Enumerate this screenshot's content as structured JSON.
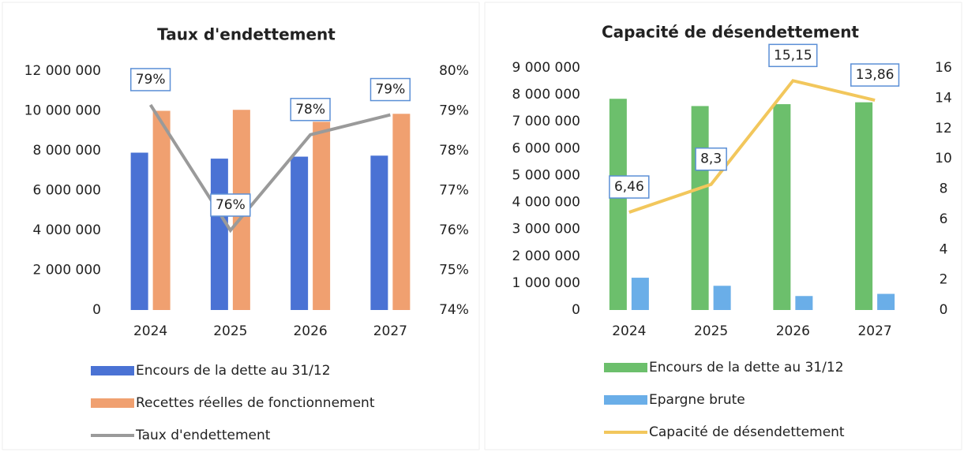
{
  "chart_data": [
    {
      "type": "bar",
      "title": "Taux d'endettement",
      "categories": [
        "2024",
        "2025",
        "2026",
        "2027"
      ],
      "series": [
        {
          "name": "Encours de la dette au 31/12",
          "color": "#4a72d4",
          "values": [
            7900000,
            7600000,
            7700000,
            7750000
          ]
        },
        {
          "name": "Recettes réelles de fonctionnement",
          "color": "#f0a070",
          "values": [
            10000000,
            10050000,
            9450000,
            9850000
          ]
        },
        {
          "name": "Taux d'endettement",
          "type": "line",
          "axis": "y2",
          "color": "#9a9a9a",
          "values": [
            79.15,
            76.0,
            78.4,
            78.9
          ],
          "value_labels": [
            "79%",
            "76%",
            "78%",
            "79%"
          ]
        }
      ],
      "ylim": [
        0,
        12000000
      ],
      "yticks": [
        {
          "value": 0,
          "label": "0"
        },
        {
          "value": 2000000,
          "label": "2 000 000"
        },
        {
          "value": 4000000,
          "label": "4 000 000"
        },
        {
          "value": 6000000,
          "label": "6 000 000"
        },
        {
          "value": 8000000,
          "label": "8 000 000"
        },
        {
          "value": 10000000,
          "label": "10 000 000"
        },
        {
          "value": 12000000,
          "label": "12 000 000"
        }
      ],
      "y2lim": [
        74,
        80
      ],
      "y2ticks": [
        {
          "value": 74,
          "label": "74%"
        },
        {
          "value": 75,
          "label": "75%"
        },
        {
          "value": 76,
          "label": "76%"
        },
        {
          "value": 77,
          "label": "77%"
        },
        {
          "value": 78,
          "label": "78%"
        },
        {
          "value": 79,
          "label": "79%"
        },
        {
          "value": 80,
          "label": "80%"
        }
      ],
      "legend": "bottom"
    },
    {
      "type": "bar",
      "title": "Capacité de désendettement",
      "categories": [
        "2024",
        "2025",
        "2026",
        "2027"
      ],
      "series": [
        {
          "name": "Encours de la dette au 31/12",
          "color": "#6cbf6c",
          "values": [
            7850000,
            7580000,
            7650000,
            7720000
          ]
        },
        {
          "name": "Epargne brute",
          "color": "#6aaee8",
          "values": [
            1200000,
            900000,
            520000,
            600000
          ]
        },
        {
          "name": "Capacité de désendettement",
          "type": "line",
          "axis": "y2",
          "color": "#f2c75c",
          "values": [
            6.46,
            8.3,
            15.15,
            13.86
          ],
          "value_labels": [
            "6,46",
            "8,3",
            "15,15",
            "13,86"
          ]
        }
      ],
      "ylim": [
        0,
        9000000
      ],
      "yticks": [
        {
          "value": 0,
          "label": "0"
        },
        {
          "value": 1000000,
          "label": "1 000 000"
        },
        {
          "value": 2000000,
          "label": "2 000 000"
        },
        {
          "value": 3000000,
          "label": "3 000 000"
        },
        {
          "value": 4000000,
          "label": "4 000 000"
        },
        {
          "value": 5000000,
          "label": "5 000 000"
        },
        {
          "value": 6000000,
          "label": "6 000 000"
        },
        {
          "value": 7000000,
          "label": "7 000 000"
        },
        {
          "value": 8000000,
          "label": "8 000 000"
        },
        {
          "value": 9000000,
          "label": "9 000 000"
        }
      ],
      "y2lim": [
        0,
        16
      ],
      "y2ticks": [
        0,
        2,
        4,
        6,
        8,
        10,
        12,
        14,
        16
      ],
      "legend": "bottom"
    }
  ]
}
